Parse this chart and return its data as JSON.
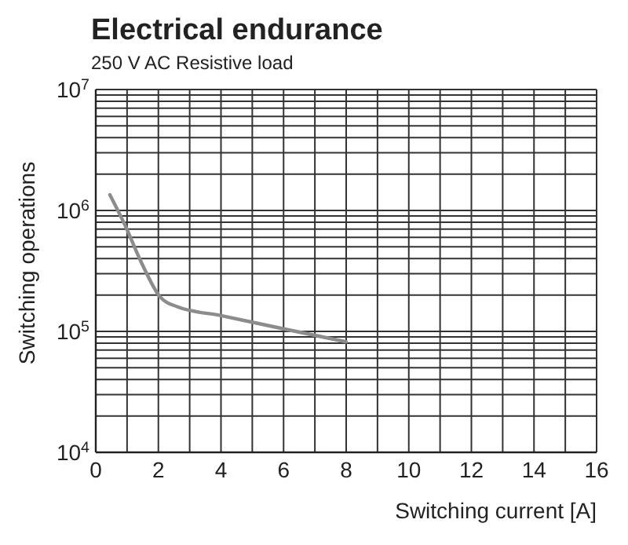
{
  "chart_data": {
    "type": "line",
    "title": "Electrical endurance",
    "subtitle": "250 V AC Resistive load",
    "xlabel": "Switching current [A]",
    "ylabel": "Switching operations",
    "x": [
      0.45,
      0.95,
      1.46,
      2.04,
      2.6,
      4,
      6,
      8
    ],
    "series": [
      {
        "color": "#8c8c8c",
        "values": [
          1350000,
          740000,
          370000,
          195000,
          160000,
          135000,
          105000,
          82000
        ]
      }
    ],
    "xlim": [
      0,
      16
    ],
    "xticks": [
      0,
      {
        "value": 1,
        "label": null
      },
      2,
      {
        "value": 3,
        "label": null
      },
      4,
      {
        "value": 5,
        "label": null
      },
      6,
      {
        "value": 7,
        "label": null
      },
      8,
      {
        "value": 9,
        "label": null
      },
      10,
      {
        "value": 11,
        "label": null
      },
      12,
      {
        "value": 13,
        "label": null
      },
      14,
      {
        "value": 15,
        "label": null
      },
      16
    ],
    "ylim": [
      10000,
      10000000
    ],
    "yticks": [
      {
        "value": 10000,
        "label": "10$^{4}$"
      },
      {
        "value": 20000,
        "label": null
      },
      {
        "value": 30000,
        "label": null
      },
      {
        "value": 40000,
        "label": null
      },
      {
        "value": 50000,
        "label": null
      },
      {
        "value": 60000,
        "label": null
      },
      {
        "value": 70000,
        "label": null
      },
      {
        "value": 80000,
        "label": null
      },
      {
        "value": 90000,
        "label": null
      },
      {
        "value": 100000,
        "label": "10$^{5}$"
      },
      {
        "value": 200000,
        "label": null
      },
      {
        "value": 300000,
        "label": null
      },
      {
        "value": 400000,
        "label": null
      },
      {
        "value": 500000,
        "label": null
      },
      {
        "value": 600000,
        "label": null
      },
      {
        "value": 700000,
        "label": null
      },
      {
        "value": 800000,
        "label": null
      },
      {
        "value": 900000,
        "label": null
      },
      {
        "value": 1000000,
        "label": "10$^{6}$"
      },
      {
        "value": 2000000,
        "label": null
      },
      {
        "value": 3000000,
        "label": null
      },
      {
        "value": 4000000,
        "label": null
      },
      {
        "value": 5000000,
        "label": null
      },
      {
        "value": 6000000,
        "label": null
      },
      {
        "value": 7000000,
        "label": null
      },
      {
        "value": 8000000,
        "label": null
      },
      {
        "value": 9000000,
        "label": null
      },
      {
        "value": 10000000,
        "label": "10$^{7}$"
      }
    ],
    "log": true,
    "grid": true,
    "marker": "none",
    "line_style": "solid"
  }
}
